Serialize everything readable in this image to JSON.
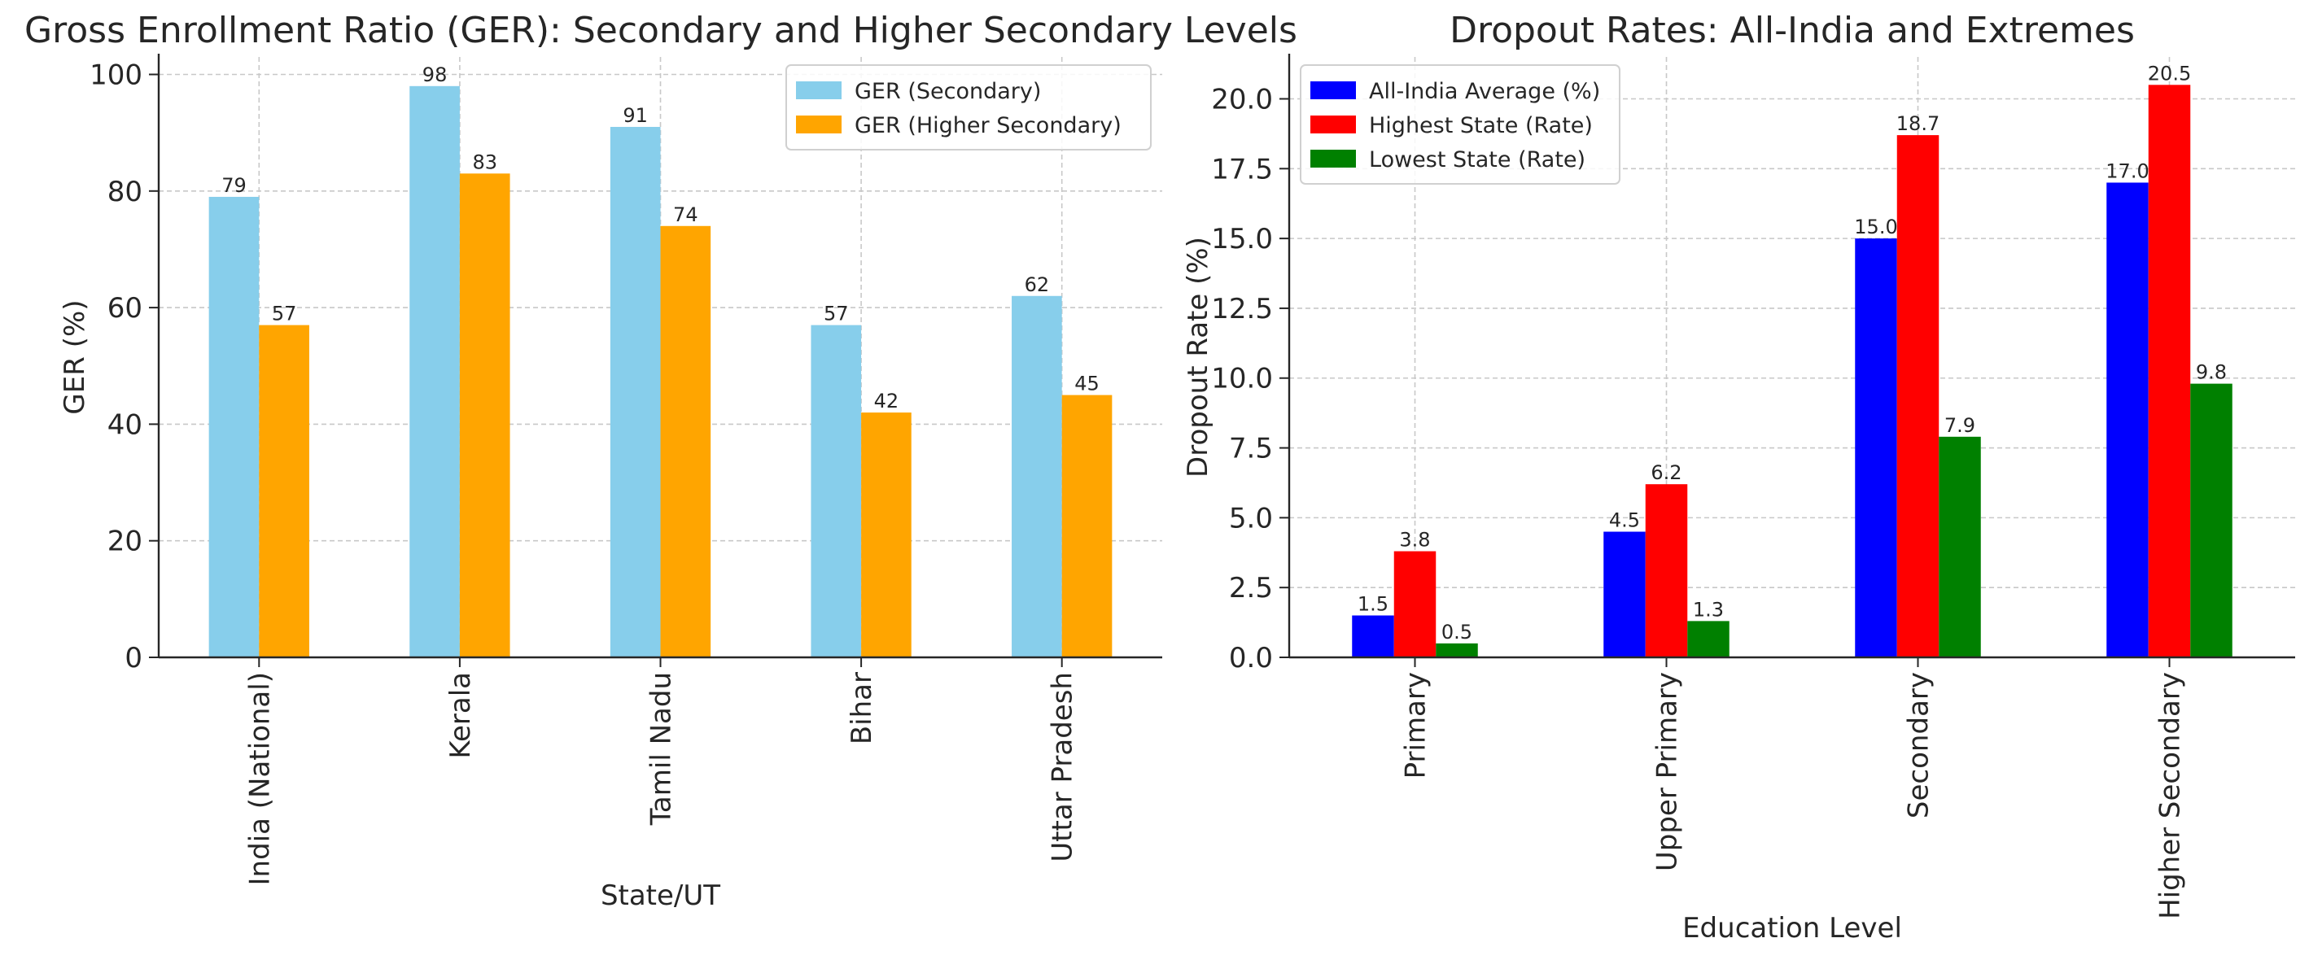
{
  "chart_data": [
    {
      "type": "bar",
      "title": "Gross Enrollment Ratio (GER): Secondary and Higher Secondary Levels",
      "xlabel": "State/UT",
      "ylabel": "GER (%)",
      "categories": [
        "India (National)",
        "Kerala",
        "Tamil Nadu",
        "Bihar",
        "Uttar Pradesh"
      ],
      "series": [
        {
          "name": "GER (Secondary)",
          "values": [
            79,
            98,
            91,
            57,
            62
          ],
          "color": "#87ceeb"
        },
        {
          "name": "GER (Higher Secondary)",
          "values": [
            57,
            83,
            74,
            42,
            45
          ],
          "color": "#ffa500"
        }
      ],
      "ylim": [
        0,
        103
      ],
      "yticks": [
        0,
        20,
        40,
        60,
        80,
        100
      ],
      "ytick_labels": [
        "0",
        "20",
        "40",
        "60",
        "80",
        "100"
      ],
      "value_decimals": 0,
      "grid": true,
      "legend_position": "top-right"
    },
    {
      "type": "bar",
      "title": "Dropout Rates: All-India and Extremes",
      "xlabel": "Education Level",
      "ylabel": "Dropout Rate (%)",
      "categories": [
        "Primary",
        "Upper Primary",
        "Secondary",
        "Higher Secondary"
      ],
      "series": [
        {
          "name": "All-India Average (%)",
          "values": [
            1.5,
            4.5,
            15.0,
            17.0
          ],
          "color": "#0000ff"
        },
        {
          "name": "Highest State (Rate)",
          "values": [
            3.8,
            6.2,
            18.7,
            20.5
          ],
          "color": "#ff0000"
        },
        {
          "name": "Lowest State (Rate)",
          "values": [
            0.5,
            1.3,
            7.9,
            9.8
          ],
          "color": "#008000"
        }
      ],
      "ylim": [
        0,
        21.5
      ],
      "yticks": [
        0,
        2.5,
        5,
        7.5,
        10,
        12.5,
        15,
        17.5,
        20
      ],
      "ytick_labels": [
        "0.0",
        "2.5",
        "5.0",
        "7.5",
        "10.0",
        "12.5",
        "15.0",
        "17.5",
        "20.0"
      ],
      "value_decimals": 1,
      "grid": true,
      "legend_position": "top-left"
    }
  ]
}
